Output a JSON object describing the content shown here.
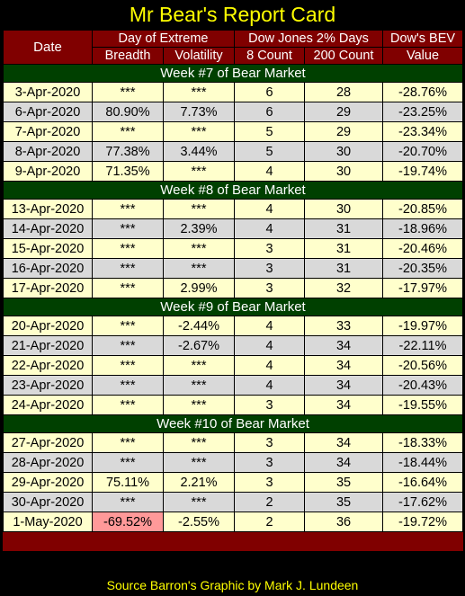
{
  "title": "Mr Bear's Report Card",
  "headers": {
    "date": "Date",
    "day_extreme": "Day of Extreme",
    "breadth": "Breadth",
    "volatility": "Volatility",
    "dow_days": "Dow Jones 2% Days",
    "count8": "8 Count",
    "count200": "200 Count",
    "bev_top": "Dow's BEV",
    "bev_bottom": "Value"
  },
  "weeks": [
    {
      "label": "Week #7 of Bear Market",
      "rows": [
        {
          "date": "3-Apr-2020",
          "breadth": "***",
          "volatility": "***",
          "c8": "6",
          "c200": "28",
          "bev": "-28.76%"
        },
        {
          "date": "6-Apr-2020",
          "breadth": "80.90%",
          "volatility": "7.73%",
          "c8": "6",
          "c200": "29",
          "bev": "-23.25%"
        },
        {
          "date": "7-Apr-2020",
          "breadth": "***",
          "volatility": "***",
          "c8": "5",
          "c200": "29",
          "bev": "-23.34%"
        },
        {
          "date": "8-Apr-2020",
          "breadth": "77.38%",
          "volatility": "3.44%",
          "c8": "5",
          "c200": "30",
          "bev": "-20.70%"
        },
        {
          "date": "9-Apr-2020",
          "breadth": "71.35%",
          "volatility": "***",
          "c8": "4",
          "c200": "30",
          "bev": "-19.74%"
        }
      ]
    },
    {
      "label": "Week #8 of Bear Market",
      "rows": [
        {
          "date": "13-Apr-2020",
          "breadth": "***",
          "volatility": "***",
          "c8": "4",
          "c200": "30",
          "bev": "-20.85%"
        },
        {
          "date": "14-Apr-2020",
          "breadth": "***",
          "volatility": "2.39%",
          "c8": "4",
          "c200": "31",
          "bev": "-18.96%"
        },
        {
          "date": "15-Apr-2020",
          "breadth": "***",
          "volatility": "***",
          "c8": "3",
          "c200": "31",
          "bev": "-20.46%"
        },
        {
          "date": "16-Apr-2020",
          "breadth": "***",
          "volatility": "***",
          "c8": "3",
          "c200": "31",
          "bev": "-20.35%"
        },
        {
          "date": "17-Apr-2020",
          "breadth": "***",
          "volatility": "2.99%",
          "c8": "3",
          "c200": "32",
          "bev": "-17.97%"
        }
      ]
    },
    {
      "label": "Week #9 of Bear Market",
      "rows": [
        {
          "date": "20-Apr-2020",
          "breadth": "***",
          "volatility": "-2.44%",
          "c8": "4",
          "c200": "33",
          "bev": "-19.97%"
        },
        {
          "date": "21-Apr-2020",
          "breadth": "***",
          "volatility": "-2.67%",
          "c8": "4",
          "c200": "34",
          "bev": "-22.11%"
        },
        {
          "date": "22-Apr-2020",
          "breadth": "***",
          "volatility": "***",
          "c8": "4",
          "c200": "34",
          "bev": "-20.56%"
        },
        {
          "date": "23-Apr-2020",
          "breadth": "***",
          "volatility": "***",
          "c8": "4",
          "c200": "34",
          "bev": "-20.43%"
        },
        {
          "date": "24-Apr-2020",
          "breadth": "***",
          "volatility": "***",
          "c8": "3",
          "c200": "34",
          "bev": "-19.55%"
        }
      ]
    },
    {
      "label": "Week #10 of Bear Market",
      "rows": [
        {
          "date": "27-Apr-2020",
          "breadth": "***",
          "volatility": "***",
          "c8": "3",
          "c200": "34",
          "bev": "-18.33%"
        },
        {
          "date": "28-Apr-2020",
          "breadth": "***",
          "volatility": "***",
          "c8": "3",
          "c200": "34",
          "bev": "-18.44%"
        },
        {
          "date": "29-Apr-2020",
          "breadth": "75.11%",
          "volatility": "2.21%",
          "c8": "3",
          "c200": "35",
          "bev": "-16.64%"
        },
        {
          "date": "30-Apr-2020",
          "breadth": "***",
          "volatility": "***",
          "c8": "2",
          "c200": "35",
          "bev": "-17.62%"
        },
        {
          "date": "1-May-2020",
          "breadth": "-69.52%",
          "volatility": "-2.55%",
          "c8": "2",
          "c200": "36",
          "bev": "-19.72%",
          "breadth_highlight": true
        }
      ]
    }
  ],
  "source": "Source Barron's  Graphic by Mark J. Lundeen",
  "colors": {
    "header_bg": "#800000",
    "week_bg": "#004000",
    "row_light": "#ffffcc",
    "row_gray": "#d9d9d9",
    "highlight": "#ff9999",
    "title": "#ffff00"
  }
}
